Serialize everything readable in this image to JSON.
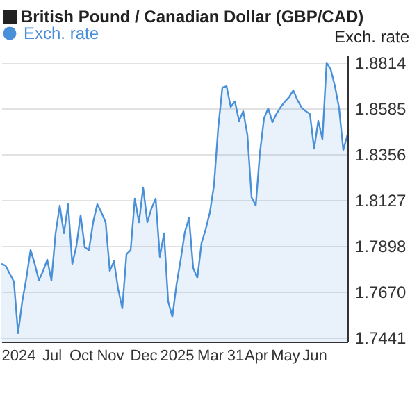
{
  "chart_data": {
    "type": "area",
    "title": "British Pound / Canadian Dollar (GBP/CAD)",
    "ylabel": "Exch. rate",
    "legend": "top left",
    "categories": [
      null,
      null,
      null,
      null,
      "2024",
      null,
      null,
      null,
      null,
      null,
      null,
      null,
      "Jul",
      null,
      null,
      null,
      null,
      null,
      null,
      "Oct",
      null,
      null,
      null,
      null,
      null,
      null,
      "Nov",
      null,
      null,
      null,
      null,
      null,
      null,
      null,
      "Dec",
      null,
      null,
      null,
      null,
      null,
      null,
      null,
      "2025",
      null,
      null,
      null,
      null,
      null,
      null,
      null,
      "Mar",
      null,
      null,
      null,
      null,
      null,
      "31",
      null,
      null,
      null,
      null,
      "Apr",
      null,
      null,
      null,
      null,
      null,
      null,
      "May",
      null,
      null,
      null,
      null,
      null,
      null,
      "Jun",
      null,
      null,
      null,
      null,
      null,
      null,
      null,
      null
    ],
    "ylim": [
      1.742,
      1.885
    ],
    "yticks": [
      {
        "value": 1.7441,
        "label": "1.7441"
      },
      {
        "value": 1.767,
        "label": "1.7670"
      },
      {
        "value": 1.7898,
        "label": "1.7898"
      },
      {
        "value": 1.8127,
        "label": "1.8127"
      },
      {
        "value": 1.8356,
        "label": "1.8356"
      },
      {
        "value": 1.8585,
        "label": "1.8585"
      },
      {
        "value": 1.8814,
        "label": "1.8814"
      }
    ],
    "grid": "y",
    "series": [
      {
        "name": "Exch. rate",
        "color": "#4a90d9",
        "values": [
          1.7809,
          1.78,
          1.776,
          1.772,
          1.7462,
          1.7621,
          1.7739,
          1.7878,
          1.7809,
          1.7726,
          1.7774,
          1.783,
          1.7726,
          1.7962,
          1.81,
          1.7962,
          1.8107,
          1.7809,
          1.79,
          1.8052,
          1.7892,
          1.7878,
          1.8017,
          1.8107,
          1.8066,
          1.8017,
          1.7774,
          1.7823,
          1.7684,
          1.7587,
          1.7857,
          1.7878,
          1.8135,
          1.8017,
          1.8191,
          1.8017,
          1.8086,
          1.8135,
          1.7844,
          1.7962,
          1.7621,
          1.7545,
          1.7705,
          1.783,
          1.7968,
          1.8038,
          1.7788,
          1.7739,
          1.7913,
          1.7982,
          1.8066,
          1.8204,
          1.8489,
          1.869,
          1.8697,
          1.8593,
          1.8621,
          1.8524,
          1.8572,
          1.8454,
          1.8142,
          1.81,
          1.8364,
          1.8538,
          1.8586,
          1.8517,
          1.856,
          1.8593,
          1.862,
          1.8642,
          1.8676,
          1.8628,
          1.859,
          1.8572,
          1.8558,
          1.8385,
          1.8524,
          1.8433,
          1.8815,
          1.878,
          1.8697,
          1.8586,
          1.8378,
          1.8454
        ]
      }
    ]
  }
}
